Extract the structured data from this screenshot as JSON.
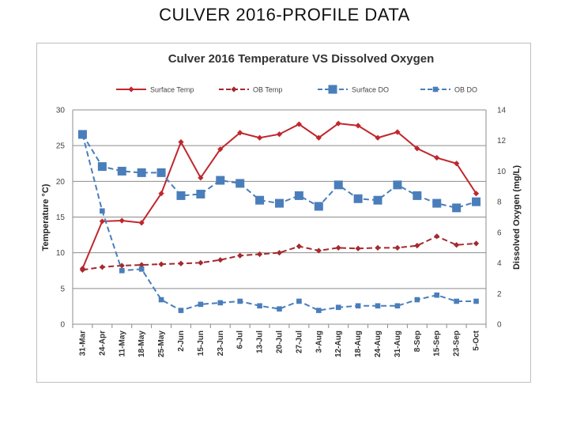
{
  "slide_title": "CULVER 2016-PROFILE DATA",
  "chart_data": {
    "type": "line",
    "title": "Culver 2016 Temperature VS Dissolved Oxygen",
    "xlabel": "",
    "ylabel": "Temperature °C)",
    "y2label": "Dissolved Oxygen (mg/L)",
    "ylim": [
      0,
      30
    ],
    "y2lim": [
      0,
      14
    ],
    "yticks": [
      0,
      5,
      10,
      15,
      20,
      25,
      30
    ],
    "y2ticks": [
      0,
      2,
      4,
      6,
      8,
      10,
      12,
      14
    ],
    "grid": true,
    "legend_position": "top",
    "categories": [
      "31-Mar",
      "24-Apr",
      "11-May",
      "18-May",
      "25-May",
      "2-Jun",
      "15-Jun",
      "23-Jun",
      "6-Jul",
      "13-Jul",
      "20-Jul",
      "27-Jul",
      "3-Aug",
      "12-Aug",
      "18-Aug",
      "24-Aug",
      "31-Aug",
      "8-Sep",
      "15-Sep",
      "23-Sep",
      "5-Oct"
    ],
    "series": [
      {
        "name": "Surface Temp",
        "axis": "left",
        "color": "#c0272d",
        "dash": "solid",
        "marker": "diamond",
        "values": [
          7.8,
          14.4,
          14.5,
          14.2,
          18.3,
          25.5,
          20.5,
          24.5,
          26.8,
          26.1,
          26.6,
          28.0,
          26.1,
          28.1,
          27.8,
          26.1,
          26.9,
          24.6,
          23.3,
          22.5,
          18.3
        ]
      },
      {
        "name": "OB Temp",
        "axis": "left",
        "color": "#a32a2e",
        "dash": "dashed",
        "marker": "diamond",
        "values": [
          7.6,
          8.0,
          8.2,
          8.3,
          8.4,
          8.5,
          8.6,
          9.0,
          9.6,
          9.8,
          10.0,
          10.9,
          10.3,
          10.7,
          10.6,
          10.7,
          10.7,
          11.0,
          12.3,
          11.1,
          11.3
        ]
      },
      {
        "name": "Surface DO",
        "axis": "right",
        "color": "#4a7ebb",
        "dash": "dashed",
        "marker": "square",
        "values": [
          12.4,
          10.3,
          10.0,
          9.9,
          9.9,
          8.4,
          8.5,
          9.4,
          9.2,
          8.1,
          7.9,
          8.4,
          7.7,
          9.1,
          8.2,
          8.1,
          9.1,
          8.4,
          7.9,
          7.6,
          8.0
        ]
      },
      {
        "name": "OB DO",
        "axis": "right",
        "color": "#4a7ebb",
        "dash": "dashed",
        "marker": "square-small",
        "values": [
          12.4,
          7.4,
          3.5,
          3.6,
          1.6,
          0.9,
          1.3,
          1.4,
          1.5,
          1.2,
          1.0,
          1.5,
          0.9,
          1.1,
          1.2,
          1.2,
          1.2,
          1.6,
          1.9,
          1.5,
          1.5
        ]
      }
    ]
  }
}
